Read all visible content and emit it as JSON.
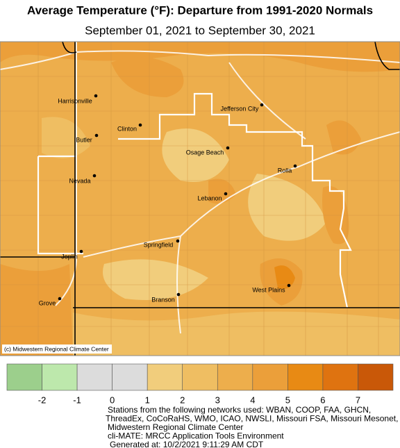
{
  "header": {
    "title": "Average Temperature (°F): Departure from 1991-2020 Normals",
    "subtitle": "September 01, 2021 to September 30, 2021"
  },
  "map": {
    "cities": [
      "Harrisonville",
      "Jefferson City",
      "Clinton",
      "Butler",
      "Osage Beach",
      "Rolla",
      "Nevada",
      "Lebanon",
      "Springfield",
      "Joplin",
      "West Plains",
      "Branson",
      "Grove"
    ],
    "copyright": "(c) Midwestern Regional Climate Center"
  },
  "legend": {
    "colors": [
      "#9ccf8c",
      "#bde8ac",
      "#dcdcdc",
      "#dcdcdc",
      "#f1cd7c",
      "#efbe62",
      "#edae4c",
      "#eb9f3a",
      "#e88a14",
      "#df7310",
      "#c95808"
    ],
    "ticks": [
      -2,
      -1,
      0,
      1,
      2,
      3,
      4,
      5,
      6,
      7
    ]
  },
  "credits": [
    "Stations from the following networks used: WBAN, COOP, FAA, GHCN,",
    "ThreadEx, CoCoRaHS, WMO, ICAO, NWSLI, Missouri FSA, Missouri Mesonet,",
    "Midwestern Regional Climate Center",
    "cli-MATE: MRCC Application Tools Environment",
    "Generated at: 10/2/2021 9:11:29 AM CDT"
  ]
}
